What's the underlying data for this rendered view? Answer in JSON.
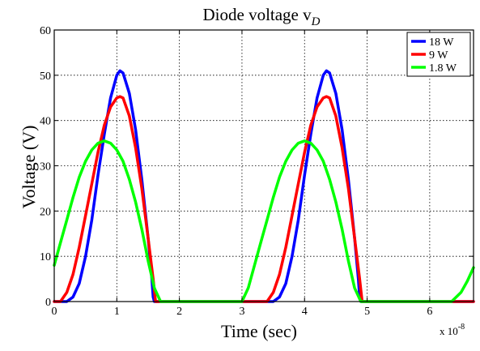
{
  "chart_data": {
    "type": "line",
    "title": "Diode voltage v",
    "title_subscript": "D",
    "xlabel": "Time (sec)",
    "ylabel": "Voltage (V)",
    "x_multiplier_base": "x 10",
    "x_multiplier_exp": "-8",
    "xlim": [
      0,
      6.7
    ],
    "ylim": [
      0,
      60
    ],
    "xticks": [
      0,
      1,
      2,
      3,
      4,
      5,
      6
    ],
    "yticks": [
      0,
      10,
      20,
      30,
      40,
      50,
      60
    ],
    "grid": true,
    "legend_position": "top-right",
    "series": [
      {
        "name": "18 W",
        "color": "#0000ff",
        "x": [
          0,
          0.2,
          0.3,
          0.4,
          0.5,
          0.6,
          0.7,
          0.8,
          0.9,
          1.0,
          1.05,
          1.1,
          1.2,
          1.3,
          1.4,
          1.5,
          1.56,
          1.58,
          1.6,
          3.5,
          3.6,
          3.7,
          3.8,
          3.9,
          4.0,
          4.1,
          4.2,
          4.3,
          4.35,
          4.4,
          4.5,
          4.6,
          4.7,
          4.8,
          4.86,
          4.88,
          4.9,
          6.7
        ],
        "y": [
          0,
          0,
          1,
          4,
          10,
          18,
          28,
          37,
          45,
          50,
          51,
          50.5,
          46,
          38,
          27,
          14,
          5,
          1,
          0,
          0,
          1,
          4,
          10,
          18,
          28,
          37,
          45,
          50,
          51,
          50.5,
          46,
          38,
          27,
          14,
          5,
          1,
          0,
          0
        ]
      },
      {
        "name": "9 W",
        "color": "#ff0000",
        "x": [
          0,
          0.1,
          0.2,
          0.3,
          0.4,
          0.5,
          0.6,
          0.7,
          0.8,
          0.9,
          1.0,
          1.05,
          1.1,
          1.2,
          1.3,
          1.4,
          1.5,
          1.58,
          1.62,
          3.4,
          3.5,
          3.6,
          3.7,
          3.8,
          3.9,
          4.0,
          4.1,
          4.2,
          4.3,
          4.35,
          4.4,
          4.5,
          4.6,
          4.7,
          4.8,
          4.88,
          4.92,
          6.7
        ],
        "y": [
          0,
          0,
          2,
          6,
          12,
          19,
          26,
          33,
          39,
          43,
          45,
          45.3,
          45,
          41,
          34,
          25,
          14,
          5,
          0,
          0,
          2,
          6,
          12,
          19,
          26,
          33,
          39,
          43,
          45,
          45.3,
          45,
          41,
          34,
          25,
          14,
          5,
          0,
          0
        ]
      },
      {
        "name": "1.8 W",
        "color": "#00ff00",
        "x": [
          0,
          0.1,
          0.2,
          0.3,
          0.4,
          0.5,
          0.6,
          0.7,
          0.8,
          0.9,
          1.0,
          1.1,
          1.2,
          1.3,
          1.4,
          1.5,
          1.6,
          1.7,
          3.0,
          3.1,
          3.2,
          3.3,
          3.4,
          3.5,
          3.6,
          3.7,
          3.8,
          3.9,
          4.0,
          4.1,
          4.2,
          4.3,
          4.4,
          4.5,
          4.6,
          4.7,
          4.8,
          4.9,
          5.0,
          6.35,
          6.5,
          6.6,
          6.7
        ],
        "y": [
          8,
          13,
          18,
          23,
          27.5,
          31,
          33.5,
          35,
          35.5,
          35,
          33.5,
          31,
          27,
          22,
          16,
          9,
          3,
          0,
          0,
          3,
          8,
          13,
          18,
          23,
          27.5,
          31,
          33.5,
          35,
          35.5,
          35,
          33.5,
          31,
          27,
          22,
          16,
          9,
          3,
          0,
          0,
          0,
          2,
          4.5,
          7.5
        ]
      }
    ]
  }
}
